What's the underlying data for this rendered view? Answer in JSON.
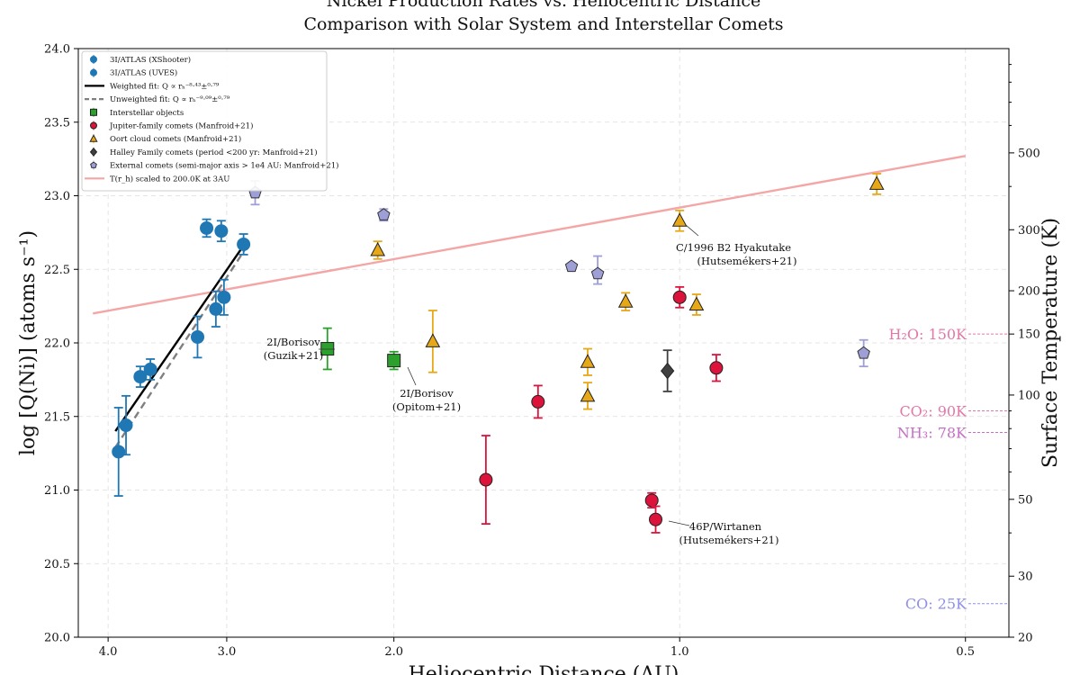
{
  "chart_data": {
    "type": "scatter",
    "title": "Nickel Production Rates vs. Heliocentric Distance",
    "subtitle": "Comparison with Solar System and Interstellar Comets",
    "xlabel": "Heliocentric Distance (AU)",
    "ylabel": "log [Q(Ni)] (atoms s⁻¹)",
    "y2label": "Surface Temperature (K)",
    "xscale": "log",
    "xlim": [
      4.3,
      0.45
    ],
    "ylim": [
      20.0,
      24.0
    ],
    "y2lim": [
      20,
      1000
    ],
    "xticks": [
      {
        "v": 4.0,
        "label": "4.0"
      },
      {
        "v": 3.0,
        "label": "3.0"
      },
      {
        "v": 2.0,
        "label": "2.0"
      },
      {
        "v": 1.0,
        "label": "1.0"
      },
      {
        "v": 0.5,
        "label": "0.5"
      }
    ],
    "yticks": [
      {
        "v": 20.0,
        "label": "20.0"
      },
      {
        "v": 20.5,
        "label": "20.5"
      },
      {
        "v": 21.0,
        "label": "21.0"
      },
      {
        "v": 21.5,
        "label": "21.5"
      },
      {
        "v": 22.0,
        "label": "22.0"
      },
      {
        "v": 22.5,
        "label": "22.5"
      },
      {
        "v": 23.0,
        "label": "23.0"
      },
      {
        "v": 23.5,
        "label": "23.5"
      },
      {
        "v": 24.0,
        "label": "24.0"
      }
    ],
    "y2ticks": [
      {
        "v": 20,
        "label": "20"
      },
      {
        "v": 30,
        "label": "30"
      },
      {
        "v": 50,
        "label": "50"
      },
      {
        "v": 100,
        "label": "100"
      },
      {
        "v": 150,
        "label": "150"
      },
      {
        "v": 200,
        "label": "200"
      },
      {
        "v": 300,
        "label": "300"
      },
      {
        "v": 500,
        "label": "500"
      }
    ],
    "legend": [
      {
        "label": "3I/ATLAS (XShooter)",
        "marker": "circle",
        "color": "#1f77b4"
      },
      {
        "label": "3I/ATLAS (UVES)",
        "marker": "circle",
        "color": "#1f77b4"
      },
      {
        "label": "Weighted fit: Q ∝ rₕ⁻⁸·⁴³±⁰·⁷⁹",
        "marker": "line",
        "color": "#000000"
      },
      {
        "label": "Unweighted fit: Q ∝ rₕ⁻⁹·⁰⁹±⁰·⁷⁹",
        "marker": "dashed",
        "color": "#7f7f7f"
      },
      {
        "label": "Interstellar objects",
        "marker": "square",
        "color": "#2ca02c"
      },
      {
        "label": "Jupiter-family comets (Manfroid+21)",
        "marker": "circle",
        "color": "#dc143c"
      },
      {
        "label": "Oort cloud comets (Manfroid+21)",
        "marker": "triangle",
        "color": "#e6a817"
      },
      {
        "label": "Halley Family comets (period <200 yr: Manfroid+21)",
        "marker": "diamond",
        "color": "#404040"
      },
      {
        "label": "External comets (semi-major axis > 1e4 AU: Manfroid+21)",
        "marker": "pentagon",
        "color": "#9f9fd8"
      },
      {
        "label": "T(r_h) scaled to 200.0K at 3AU",
        "marker": "line",
        "color": "#f4a6a6"
      }
    ],
    "series": [
      {
        "name": "3I/ATLAS",
        "marker": "circle",
        "color": "#1f77b4",
        "points": [
          {
            "x": 3.9,
            "y": 21.26,
            "lo": 0.3,
            "hi": 0.3
          },
          {
            "x": 3.83,
            "y": 21.44,
            "lo": 0.2,
            "hi": 0.2
          },
          {
            "x": 3.7,
            "y": 21.77,
            "lo": 0.07,
            "hi": 0.07
          },
          {
            "x": 3.61,
            "y": 21.82,
            "lo": 0.07,
            "hi": 0.07
          },
          {
            "x": 3.22,
            "y": 22.04,
            "lo": 0.14,
            "hi": 0.14
          },
          {
            "x": 3.15,
            "y": 22.78,
            "lo": 0.06,
            "hi": 0.06
          },
          {
            "x": 3.08,
            "y": 22.23,
            "lo": 0.12,
            "hi": 0.12
          },
          {
            "x": 3.04,
            "y": 22.76,
            "lo": 0.07,
            "hi": 0.07
          },
          {
            "x": 3.02,
            "y": 22.31,
            "lo": 0.12,
            "hi": 0.12
          },
          {
            "x": 2.88,
            "y": 22.67,
            "lo": 0.07,
            "hi": 0.07
          }
        ]
      },
      {
        "name": "Interstellar objects",
        "marker": "square",
        "color": "#2ca02c",
        "points": [
          {
            "x": 2.35,
            "y": 21.96,
            "lo": 0.14,
            "hi": 0.14
          },
          {
            "x": 2.0,
            "y": 21.88,
            "lo": 0.06,
            "hi": 0.06
          }
        ]
      },
      {
        "name": "Jupiter-family comets",
        "marker": "circle",
        "color": "#dc143c",
        "points": [
          {
            "x": 1.6,
            "y": 21.07,
            "lo": 0.3,
            "hi": 0.3
          },
          {
            "x": 1.41,
            "y": 21.6,
            "lo": 0.11,
            "hi": 0.11
          },
          {
            "x": 1.07,
            "y": 20.93,
            "lo": 0.05,
            "hi": 0.05
          },
          {
            "x": 1.06,
            "y": 20.8,
            "lo": 0.09,
            "hi": 0.09
          },
          {
            "x": 1.0,
            "y": 22.31,
            "lo": 0.07,
            "hi": 0.07
          },
          {
            "x": 0.915,
            "y": 21.83,
            "lo": 0.09,
            "hi": 0.09
          }
        ]
      },
      {
        "name": "Oort cloud comets",
        "marker": "triangle",
        "color": "#e6a817",
        "points": [
          {
            "x": 2.08,
            "y": 22.63,
            "lo": 0.06,
            "hi": 0.06
          },
          {
            "x": 1.82,
            "y": 22.01,
            "lo": 0.21,
            "hi": 0.21
          },
          {
            "x": 1.25,
            "y": 21.87,
            "lo": 0.09,
            "hi": 0.09
          },
          {
            "x": 1.25,
            "y": 21.64,
            "lo": 0.09,
            "hi": 0.09
          },
          {
            "x": 1.14,
            "y": 22.28,
            "lo": 0.06,
            "hi": 0.06
          },
          {
            "x": 1.0,
            "y": 22.83,
            "lo": 0.07,
            "hi": 0.07
          },
          {
            "x": 0.96,
            "y": 22.26,
            "lo": 0.07,
            "hi": 0.07
          },
          {
            "x": 0.62,
            "y": 23.08,
            "lo": 0.07,
            "hi": 0.07
          }
        ]
      },
      {
        "name": "Halley Family comets",
        "marker": "diamond",
        "color": "#404040",
        "points": [
          {
            "x": 1.03,
            "y": 21.81,
            "lo": 0.14,
            "hi": 0.14
          }
        ]
      },
      {
        "name": "External comets",
        "marker": "pentagon",
        "color": "#9f9fd8",
        "points": [
          {
            "x": 2.8,
            "y": 23.02,
            "lo": 0.08,
            "hi": 0.08
          },
          {
            "x": 2.05,
            "y": 22.87,
            "lo": 0.04,
            "hi": 0.04
          },
          {
            "x": 1.3,
            "y": 22.52,
            "lo": 0.0,
            "hi": 0.0
          },
          {
            "x": 1.22,
            "y": 22.47,
            "lo": 0.07,
            "hi": 0.12
          },
          {
            "x": 0.64,
            "y": 21.93,
            "lo": 0.09,
            "hi": 0.09
          }
        ]
      }
    ],
    "fits": [
      {
        "name": "Weighted fit",
        "style": "solid",
        "color": "#000000",
        "x": [
          3.93,
          2.86
        ],
        "y": [
          21.4,
          22.69
        ]
      },
      {
        "name": "Unweighted fit",
        "style": "dashed",
        "color": "#7f7f7f",
        "x": [
          3.93,
          2.86
        ],
        "y": [
          21.29,
          22.65
        ]
      }
    ],
    "temperature_curve": {
      "name": "T(r_h) scaled to 200.0K at 3AU",
      "color": "#f4a6a6",
      "x": [
        4.15,
        0.5
      ],
      "y": [
        22.2,
        23.27
      ]
    },
    "annotations": [
      {
        "text": "2I/Borisov",
        "text2": "(Guzik+21)"
      },
      {
        "text": "2I/Borisov",
        "text2": "(Opitom+21)"
      },
      {
        "text": "C/1996 B2 Hyakutake",
        "text2": "(Hutsemékers+21)"
      },
      {
        "text": "46P/Wirtanen",
        "text2": "(Hutsemékers+21)"
      }
    ],
    "thresholds": [
      {
        "label": "H₂O: 150K",
        "T": 150,
        "color": "#e377a8"
      },
      {
        "label": "CO₂: 90K",
        "T": 90,
        "color": "#e377a8"
      },
      {
        "label": "NH₃: 78K",
        "T": 78,
        "color": "#c66ec6"
      },
      {
        "label": "CO: 25K",
        "T": 25,
        "color": "#8f8fe8"
      }
    ]
  }
}
